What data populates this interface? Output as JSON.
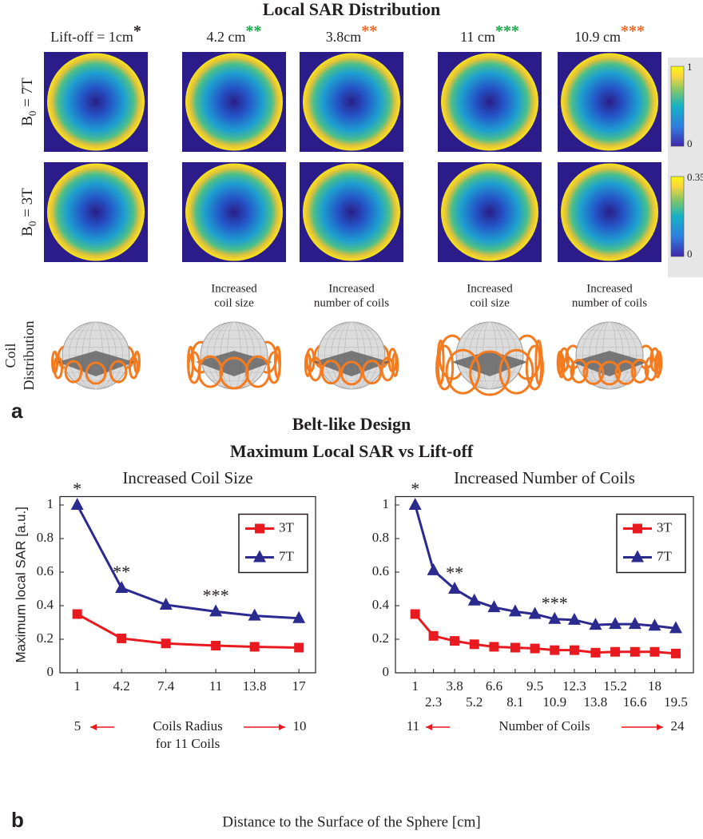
{
  "figure_a": {
    "label": "a",
    "title": "Local SAR Distribution",
    "columns": [
      {
        "label": "Lift-off = 1cm",
        "mark": "*",
        "mark_color": "#231f20"
      },
      {
        "label": "4.2 cm",
        "mark": "**",
        "mark_color": "#1aa64a",
        "caption": [
          "Increased",
          "coil size"
        ]
      },
      {
        "label": "3.8cm",
        "mark": "**",
        "mark_color": "#f26522",
        "caption": [
          "Increased",
          "number of coils"
        ]
      },
      {
        "label": "11 cm",
        "mark": "***",
        "mark_color": "#1aa64a",
        "caption": [
          "Increased",
          "coil size"
        ]
      },
      {
        "label": "10.9 cm",
        "mark": "***",
        "mark_color": "#f26522",
        "caption": [
          "Increased",
          "number of coils"
        ]
      }
    ],
    "rows": [
      {
        "symbol": "B",
        "subscript": "0",
        "label": " = 7T",
        "colorbar": {
          "max": 1,
          "min": 0
        }
      },
      {
        "symbol": "B",
        "subscript": "0",
        "label": " = 3T",
        "colorbar": {
          "max": 0.35,
          "min": 0
        }
      }
    ],
    "coil_label": [
      "Coil",
      "Distribution"
    ]
  },
  "figure_b": {
    "label": "b",
    "title": [
      "Belt-like Design",
      "Maximum Local SAR vs Lift-off"
    ],
    "xlabel": "Distance to the Surface of the Sphere [cm]"
  },
  "chart_data": [
    {
      "type": "line",
      "title": "Increased Coil Size",
      "ylabel": "Maximum local SAR [a.u.]",
      "x": [
        1,
        4.2,
        7.4,
        11,
        13.8,
        17
      ],
      "series": [
        {
          "name": "3T",
          "color": "#e8191f",
          "marker": "square",
          "values": [
            0.35,
            0.205,
            0.175,
            0.162,
            0.155,
            0.15
          ]
        },
        {
          "name": "7T",
          "color": "#2b2a8f",
          "marker": "triangle",
          "values": [
            1,
            0.505,
            0.405,
            0.365,
            0.34,
            0.325
          ]
        }
      ],
      "xlim": [
        -0.25,
        18.2
      ],
      "ylim": [
        0,
        1.05
      ],
      "xticks": [
        1,
        4.2,
        7.4,
        11,
        13.8,
        17
      ],
      "yticks": [
        0,
        0.2,
        0.4,
        0.6,
        0.8,
        1
      ],
      "legend": "upper right",
      "annotations": [
        {
          "text": "*",
          "x": 1,
          "color": "#231f20"
        },
        {
          "text": "**",
          "x": 4.2,
          "color": "#1aa64a"
        },
        {
          "text": "***",
          "x": 11,
          "color": "#1aa64a"
        }
      ],
      "x_note": {
        "left": "5",
        "text": [
          "Coils Radius",
          "for 11 Coils"
        ],
        "right": "10",
        "color": "#e8191f"
      }
    },
    {
      "type": "line",
      "title": "Increased Number of Coils",
      "x": [
        1,
        2.3,
        3.8,
        5.2,
        6.6,
        8.1,
        9.5,
        10.9,
        12.3,
        13.8,
        15.2,
        16.6,
        18,
        19.5
      ],
      "series": [
        {
          "name": "3T",
          "color": "#e8191f",
          "marker": "square",
          "values": [
            0.35,
            0.22,
            0.19,
            0.17,
            0.155,
            0.15,
            0.145,
            0.135,
            0.135,
            0.12,
            0.125,
            0.125,
            0.125,
            0.115
          ]
        },
        {
          "name": "7T",
          "color": "#2b2a8f",
          "marker": "triangle",
          "values": [
            1,
            0.61,
            0.5,
            0.43,
            0.39,
            0.365,
            0.35,
            0.32,
            0.315,
            0.285,
            0.29,
            0.29,
            0.28,
            0.265
          ]
        }
      ],
      "xlim": [
        -0.4,
        20.75
      ],
      "ylim": [
        0,
        1.05
      ],
      "xticks": [
        1,
        2.3,
        3.8,
        5.2,
        6.6,
        8.1,
        9.5,
        10.9,
        12.3,
        13.8,
        15.2,
        16.6,
        18,
        19.5
      ],
      "yticks": [
        0,
        0.2,
        0.4,
        0.6,
        0.8,
        1
      ],
      "legend": "upper right",
      "annotations": [
        {
          "text": "*",
          "x": 1,
          "color": "#231f20"
        },
        {
          "text": "**",
          "x": 3.8,
          "color": "#f26522"
        },
        {
          "text": "***",
          "x": 10.9,
          "color": "#f26522"
        }
      ],
      "x_note": {
        "left": "11",
        "text": [
          "Number of Coils"
        ],
        "right": "24",
        "color": "#e8191f"
      }
    }
  ]
}
